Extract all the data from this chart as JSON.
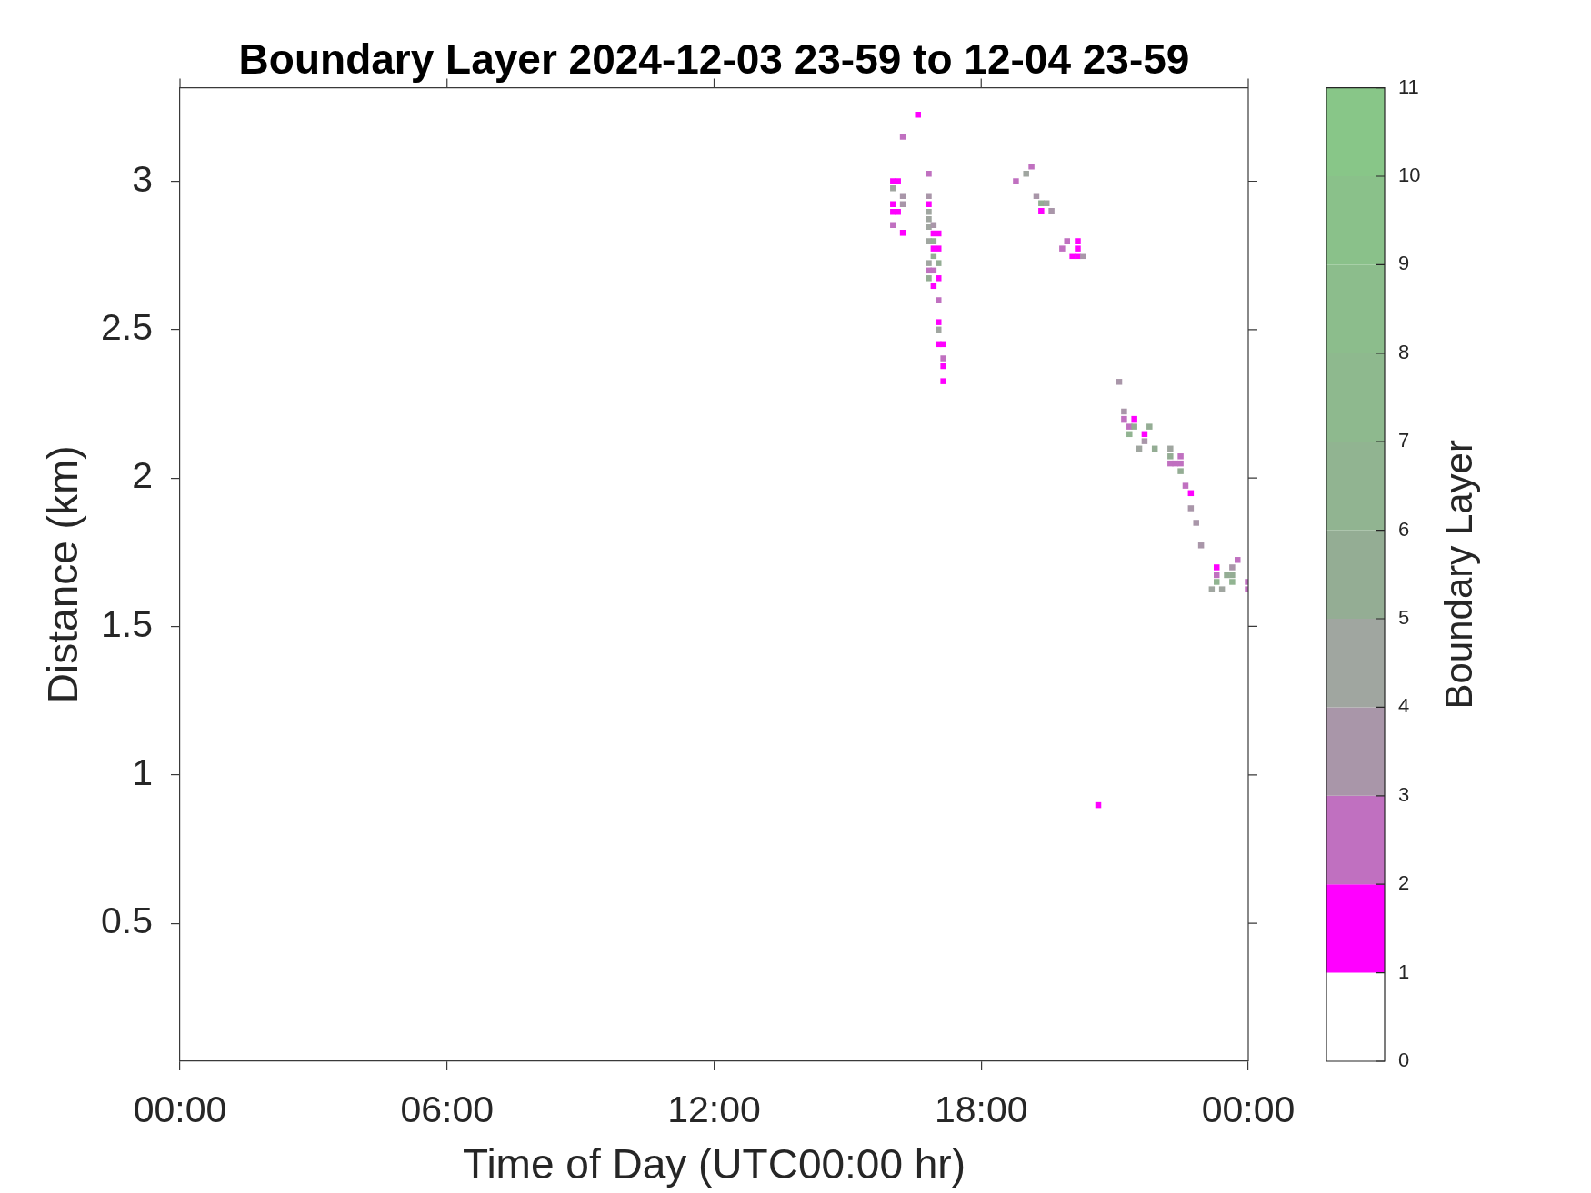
{
  "chart_data": {
    "type": "scatter",
    "title": "Boundary Layer 2024-12-03 23-59 to 12-04 23-59",
    "xlabel": "Time of Day (UTC00:00 hr)",
    "ylabel": "Distance (km)",
    "clabel": "Boundary Layer",
    "marker": "square",
    "x": [
      16.58,
      16.24,
      16.82,
      16.02,
      16.13,
      16.02,
      16.24,
      16.82,
      16.02,
      16.24,
      16.82,
      16.02,
      16.13,
      16.82,
      16.82,
      16.82,
      16.02,
      16.24,
      16.93,
      16.93,
      17.04,
      16.82,
      16.93,
      16.93,
      17.04,
      16.93,
      16.82,
      17.04,
      16.82,
      16.93,
      16.82,
      17.04,
      16.93,
      17.04,
      17.04,
      17.04,
      17.04,
      17.15,
      17.15,
      17.15,
      17.15,
      19.13,
      19.01,
      18.78,
      19.24,
      19.35,
      19.47,
      19.35,
      19.58,
      19.93,
      20.17,
      19.82,
      20.17,
      20.05,
      20.17,
      20.29,
      20.63,
      21.1,
      21.21,
      21.21,
      21.44,
      21.33,
      21.44,
      21.78,
      21.33,
      21.67,
      21.67,
      21.55,
      21.9,
      22.25,
      22.25,
      22.48,
      22.25,
      22.36,
      22.48,
      22.48,
      22.59,
      22.71,
      22.71,
      22.83,
      22.94,
      23.76,
      23.29,
      23.64,
      23.29,
      23.52,
      23.64,
      23.29,
      23.64,
      23.18,
      23.41,
      23.99,
      23.99
    ],
    "values": [
      3.224,
      3.15,
      3.025,
      3.0,
      3.0,
      2.976,
      2.95,
      2.95,
      2.923,
      2.923,
      2.923,
      2.897,
      2.897,
      2.897,
      2.872,
      2.846,
      2.852,
      2.826,
      2.852,
      2.824,
      2.824,
      2.798,
      2.798,
      2.773,
      2.773,
      2.748,
      2.724,
      2.724,
      2.699,
      2.699,
      2.673,
      2.673,
      2.647,
      2.599,
      2.525,
      2.5,
      2.451,
      2.451,
      2.403,
      2.377,
      2.326,
      3.05,
      3.025,
      3.0,
      2.95,
      2.926,
      2.926,
      2.9,
      2.9,
      2.798,
      2.798,
      2.773,
      2.773,
      2.748,
      2.748,
      2.748,
      0.898,
      2.324,
      2.224,
      2.199,
      2.199,
      2.173,
      2.173,
      2.173,
      2.148,
      2.148,
      2.124,
      2.099,
      2.099,
      2.099,
      2.073,
      2.073,
      2.049,
      2.049,
      2.049,
      2.023,
      1.974,
      1.949,
      1.898,
      1.849,
      1.773,
      1.724,
      1.699,
      1.699,
      1.673,
      1.673,
      1.673,
      1.65,
      1.65,
      1.625,
      1.625,
      1.65,
      1.625
    ],
    "cvalues": [
      1.5,
      2.5,
      2.5,
      1.5,
      1.5,
      4.5,
      3.5,
      3.5,
      1.5,
      3.5,
      1.5,
      1.5,
      1.5,
      4.5,
      4.5,
      4.5,
      2.5,
      1.5,
      3.5,
      1.5,
      1.5,
      4.5,
      5.5,
      1.5,
      1.5,
      5.5,
      4.5,
      5.5,
      2.5,
      2.5,
      5.5,
      1.5,
      1.5,
      2.5,
      1.5,
      4.5,
      1.5,
      1.5,
      2.5,
      1.5,
      1.5,
      2.5,
      4.5,
      2.5,
      3.5,
      5.5,
      4.5,
      1.5,
      3.5,
      2.5,
      1.5,
      2.5,
      1.5,
      1.5,
      1.5,
      3.5,
      1.5,
      3.5,
      3.5,
      2.5,
      1.5,
      2.5,
      5.5,
      5.5,
      6.5,
      1.5,
      3.5,
      4.5,
      5.5,
      4.5,
      5.5,
      2.5,
      2.5,
      2.5,
      2.5,
      5.5,
      2.5,
      1.5,
      3.5,
      3.5,
      3.5,
      2.5,
      1.5,
      3.5,
      2.5,
      5.5,
      5.5,
      6.5,
      6.5,
      4.5,
      4.5,
      2.5,
      2.5
    ],
    "xlim": [
      0,
      24
    ],
    "xticks": [
      {
        "value": 0,
        "label": "00:00"
      },
      {
        "value": 6,
        "label": "06:00"
      },
      {
        "value": 12,
        "label": "12:00"
      },
      {
        "value": 18,
        "label": "18:00"
      },
      {
        "value": 24,
        "label": "00:00"
      }
    ],
    "ylim": [
      0.035,
      3.315
    ],
    "yticks": [
      0.5,
      1,
      1.5,
      2,
      2.5,
      3
    ],
    "clim": [
      0,
      11
    ],
    "cticks": [
      0,
      1,
      2,
      3,
      4,
      5,
      6,
      7,
      8,
      9,
      10,
      11
    ]
  }
}
